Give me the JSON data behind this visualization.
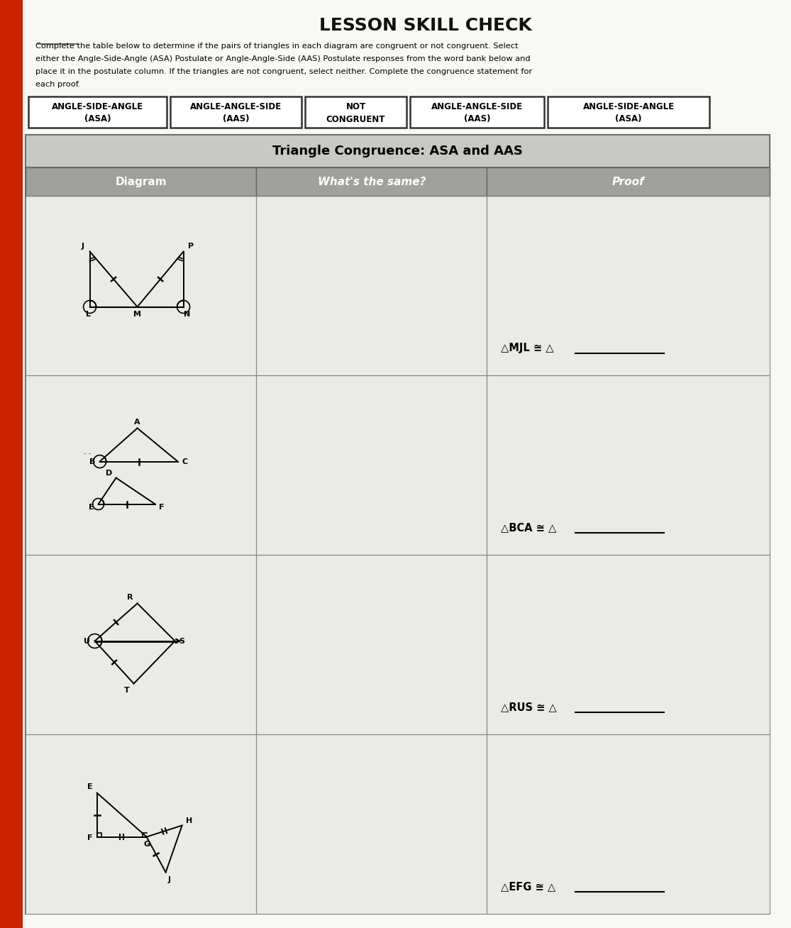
{
  "title": "LESSON SKILL CHECK",
  "instructions_line1": "Complete the table below to determine if the pairs of triangles in each diagram are congruent or not congruent. Select",
  "instructions_line2": "either the Angle-Side-Angle (ASA) Postulate or Angle-Angle-Side (AAS) Postulate responses from the word bank below and",
  "instructions_line3": "place it in the postulate column. If the triangles are not congruent, select neither. Complete the congruence statement for",
  "instructions_line4": "each proof.",
  "word_bank": [
    {
      "line1": "ANGLE-SIDE-ANGLE",
      "line2": "(ASA)"
    },
    {
      "line1": "ANGLE-ANGLE-SIDE",
      "line2": "(AAS)"
    },
    {
      "line1": "NOT",
      "line2": "CONGRUENT"
    },
    {
      "line1": "ANGLE-ANGLE-SIDE",
      "line2": "(AAS)"
    },
    {
      "line1": "ANGLE-SIDE-ANGLE",
      "line2": "(ASA)"
    }
  ],
  "table_title": "Triangle Congruence: ASA and AAS",
  "col_headers": [
    "Diagram",
    "What's the same?",
    "Proof"
  ],
  "proof_texts": [
    "△MJL ≅ △",
    "△BCA ≅ △",
    "△RUS ≅ △",
    "△EFG ≅ △"
  ],
  "bg_color": "#f5f5f0",
  "page_bg": "#f0efea",
  "table_bg": "#e8e8e4",
  "table_title_bg": "#c8c8c4",
  "col_header_bg": "#a0a09c",
  "row_bg": "#eaeae6",
  "word_bank_bg": "#ffffff",
  "red_stripe": "#cc2200",
  "title_color": "#111111",
  "table_border": "#888880"
}
